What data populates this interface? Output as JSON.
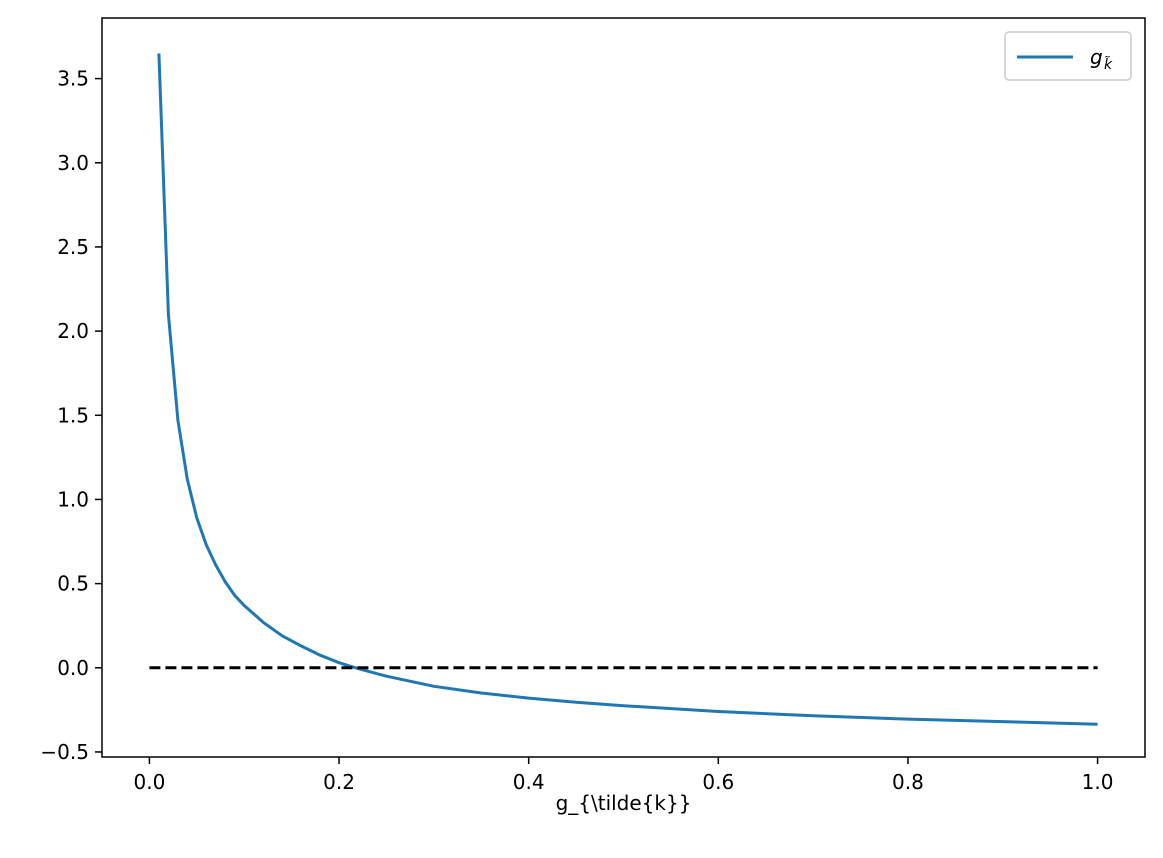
{
  "chart_data": {
    "type": "line",
    "title": "",
    "xlabel": "g_{\\tilde{k}}",
    "ylabel": "",
    "xlim": [
      -0.05,
      1.05
    ],
    "ylim": [
      -0.53,
      3.86
    ],
    "x_ticks": [
      "0.0",
      "0.2",
      "0.4",
      "0.6",
      "0.8",
      "1.0"
    ],
    "y_ticks": [
      "−0.5",
      "0.0",
      "0.5",
      "1.0",
      "1.5",
      "2.0",
      "2.5",
      "3.0",
      "3.5"
    ],
    "grid": false,
    "legend_position": "top-right",
    "series": [
      {
        "name": "g",
        "name_subscript": "k̃",
        "color": "#1f77b4",
        "style": "solid",
        "x": [
          0.01,
          0.02,
          0.03,
          0.04,
          0.05,
          0.06,
          0.07,
          0.08,
          0.09,
          0.1,
          0.12,
          0.14,
          0.16,
          0.18,
          0.2,
          0.22,
          0.25,
          0.3,
          0.35,
          0.4,
          0.45,
          0.5,
          0.6,
          0.7,
          0.8,
          0.9,
          1.0
        ],
        "y": [
          3.65,
          2.1,
          1.47,
          1.12,
          0.89,
          0.73,
          0.61,
          0.51,
          0.43,
          0.37,
          0.27,
          0.19,
          0.13,
          0.075,
          0.03,
          -0.005,
          -0.05,
          -0.11,
          -0.15,
          -0.18,
          -0.205,
          -0.225,
          -0.26,
          -0.285,
          -0.305,
          -0.32,
          -0.335
        ]
      },
      {
        "name": "",
        "color": "#000000",
        "style": "dashed",
        "x": [
          0.0,
          1.0
        ],
        "y": [
          0.0,
          0.0
        ]
      }
    ]
  }
}
